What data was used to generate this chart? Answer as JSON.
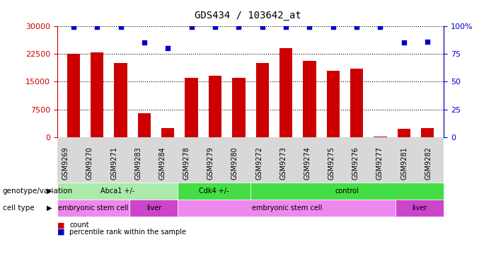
{
  "title": "GDS434 / 103642_at",
  "samples": [
    "GSM9269",
    "GSM9270",
    "GSM9271",
    "GSM9283",
    "GSM9284",
    "GSM9278",
    "GSM9279",
    "GSM9280",
    "GSM9272",
    "GSM9273",
    "GSM9274",
    "GSM9275",
    "GSM9276",
    "GSM9277",
    "GSM9281",
    "GSM9282"
  ],
  "counts": [
    22500,
    22800,
    20000,
    6500,
    2500,
    16000,
    16500,
    16000,
    20000,
    24000,
    20500,
    18000,
    18500,
    200,
    2200,
    2400
  ],
  "percentiles": [
    99,
    99,
    99,
    85,
    80,
    99,
    99,
    99,
    99,
    99,
    99,
    99,
    99,
    99,
    85,
    86
  ],
  "ylim_left": [
    0,
    30000
  ],
  "ylim_right": [
    0,
    100
  ],
  "yticks_left": [
    0,
    7500,
    15000,
    22500,
    30000
  ],
  "yticks_right": [
    0,
    25,
    50,
    75,
    100
  ],
  "bar_color": "#cc0000",
  "dot_color": "#0000cc",
  "genotype_groups": [
    {
      "label": "Abca1 +/-",
      "start": 0,
      "end": 4,
      "color": "#aaeaaa"
    },
    {
      "label": "Cdk4 +/-",
      "start": 5,
      "end": 7,
      "color": "#44dd44"
    },
    {
      "label": "control",
      "start": 8,
      "end": 15,
      "color": "#44dd44"
    }
  ],
  "celltype_groups": [
    {
      "label": "embryonic stem cell",
      "start": 0,
      "end": 2,
      "color": "#ee88ee"
    },
    {
      "label": "liver",
      "start": 3,
      "end": 4,
      "color": "#cc44cc"
    },
    {
      "label": "embryonic stem cell",
      "start": 5,
      "end": 13,
      "color": "#ee88ee"
    },
    {
      "label": "liver",
      "start": 14,
      "end": 15,
      "color": "#cc44cc"
    }
  ],
  "xlabel_fontsize": 7,
  "title_fontsize": 10,
  "tick_fontsize": 8,
  "label_fontsize": 7.5
}
